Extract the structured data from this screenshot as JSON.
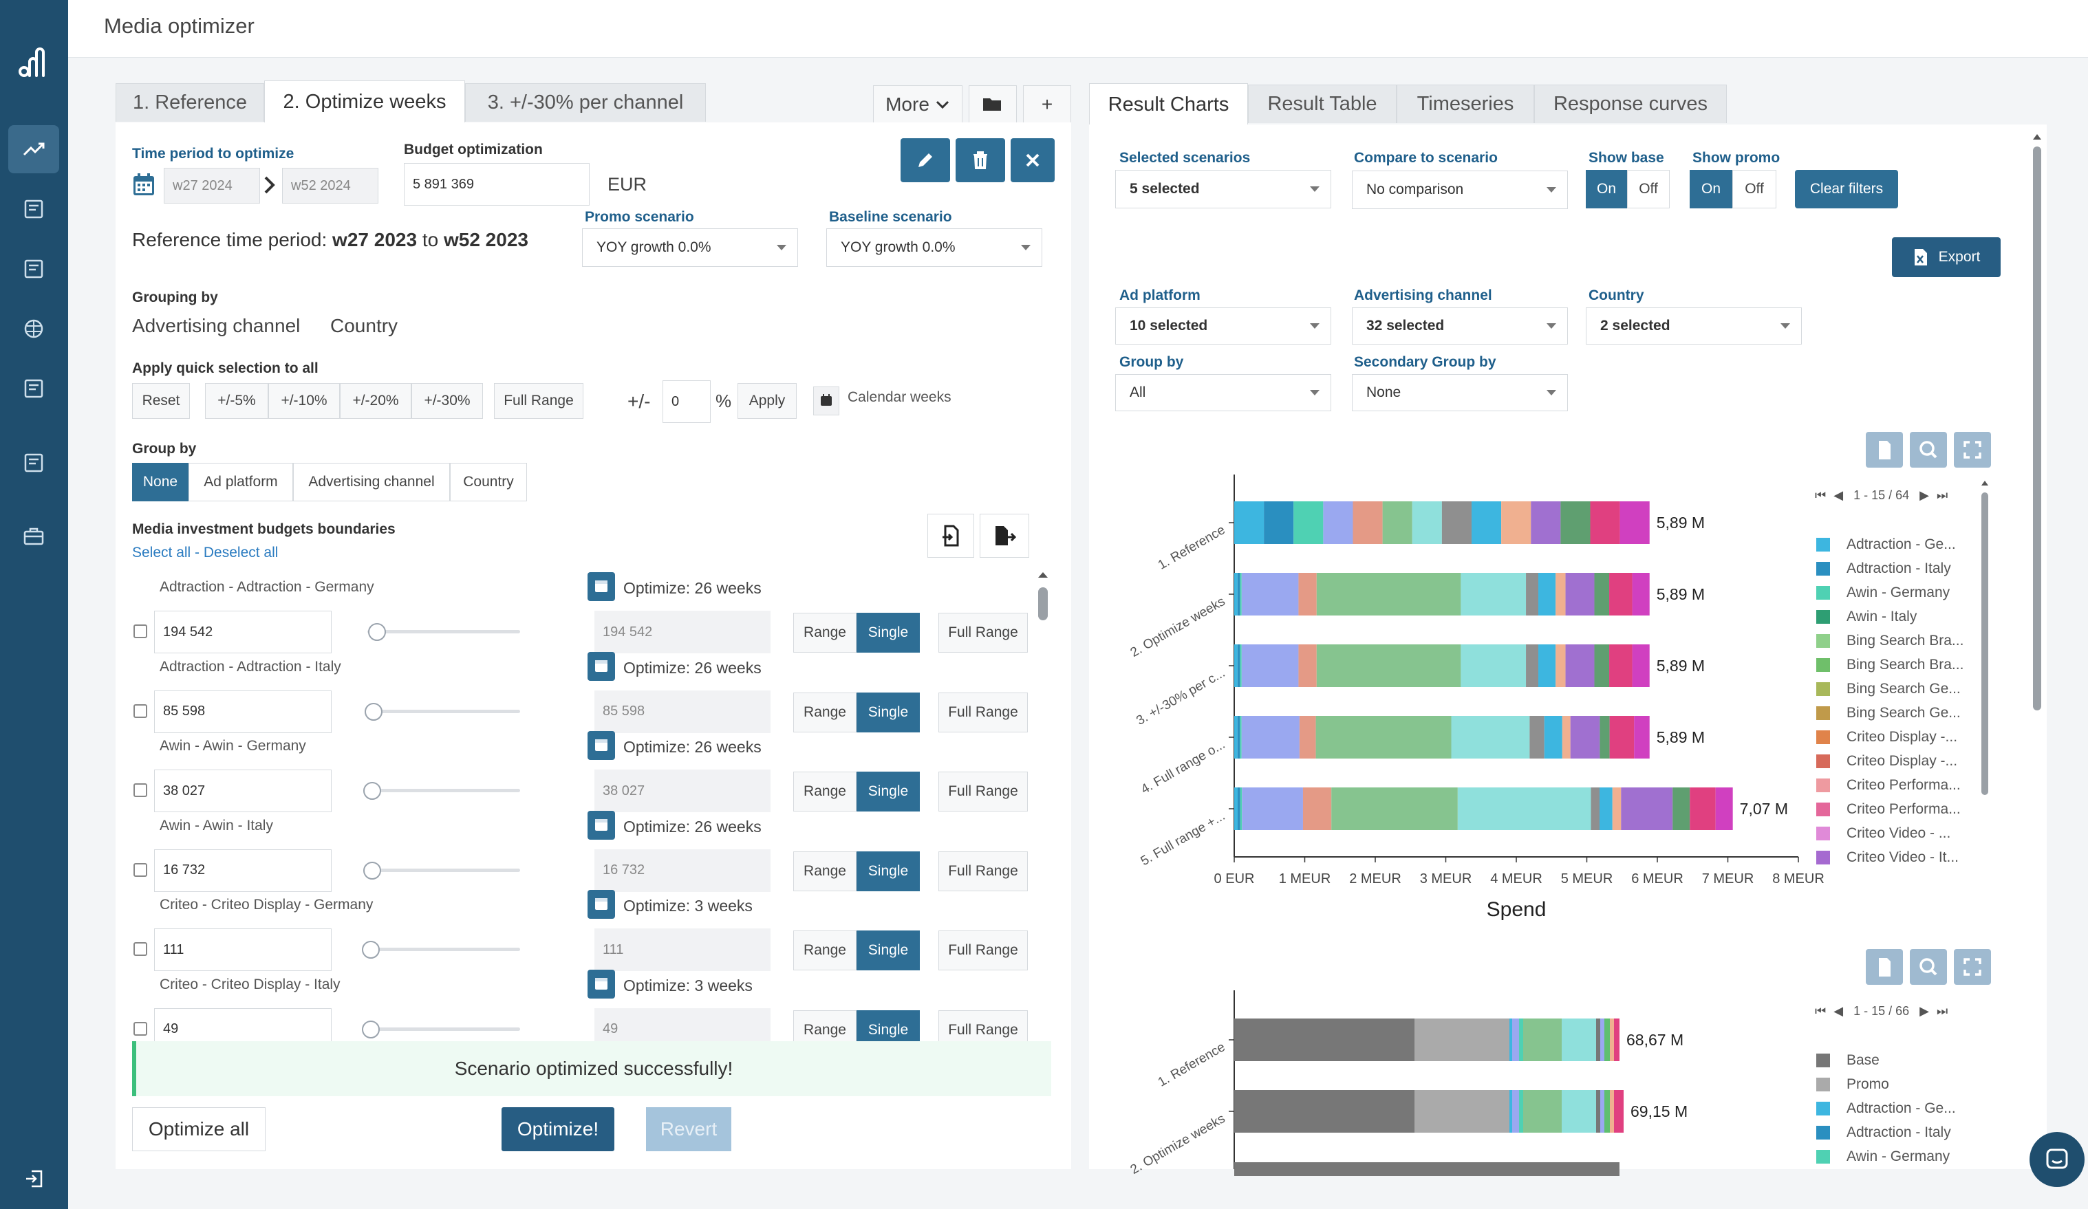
{
  "app": {
    "title": "Media optimizer"
  },
  "left_tabs": [
    {
      "label": "1. Reference"
    },
    {
      "label": "2. Optimize weeks"
    },
    {
      "label": "3. +/-30% per channel"
    }
  ],
  "left_toolbar": {
    "more_label": "More",
    "plus_label": "+"
  },
  "right_tabs": [
    {
      "label": "Result Charts"
    },
    {
      "label": "Result Table"
    },
    {
      "label": "Timeseries"
    },
    {
      "label": "Response curves"
    }
  ],
  "time_period": {
    "label": "Time period to optimize",
    "from": "w27 2024",
    "to": "w52 2024"
  },
  "budget": {
    "label": "Budget optimization",
    "value": "5 891 369",
    "currency": "EUR"
  },
  "promo": {
    "label": "Promo scenario",
    "value": "YOY growth 0.0%"
  },
  "baseline": {
    "label": "Baseline scenario",
    "value": "YOY growth 0.0%"
  },
  "reference": {
    "prefix": "Reference time period: ",
    "from": "w27 2023",
    "mid": " to ",
    "to": "w52 2023"
  },
  "grouping": {
    "label": "Grouping by",
    "items": [
      "Advertising channel",
      "Country"
    ]
  },
  "quick": {
    "label": "Apply quick selection to all",
    "buttons": [
      "Reset",
      "+/-5%",
      "+/-10%",
      "+/-20%",
      "+/-30%",
      "Full Range"
    ],
    "pm_label": "+/-",
    "pm_value": "0",
    "pct": "%",
    "apply": "Apply",
    "calendar_label": "Calendar weeks"
  },
  "groupby": {
    "label": "Group by",
    "buttons": [
      "None",
      "Ad platform",
      "Advertising channel",
      "Country"
    ],
    "active": "None"
  },
  "boundaries": {
    "title": "Media investment budgets boundaries",
    "select_all": "Select all",
    "sep": " - ",
    "deselect_all": "Deselect all"
  },
  "rows": [
    {
      "name": "Adtraction - Adtraction - Germany",
      "value": "194 542",
      "disabled": "194 542",
      "optimize": "Optimize: 26 weeks",
      "slider": 0.04
    },
    {
      "name": "Adtraction - Adtraction - Italy",
      "value": "85 598",
      "disabled": "85 598",
      "optimize": "Optimize: 26 weeks",
      "slider": 0.02
    },
    {
      "name": "Awin - Awin - Germany",
      "value": "38 027",
      "disabled": "38 027",
      "optimize": "Optimize: 26 weeks",
      "slider": 0.01
    },
    {
      "name": "Awin - Awin - Italy",
      "value": "16 732",
      "disabled": "16 732",
      "optimize": "Optimize: 26 weeks",
      "slider": 0.01
    },
    {
      "name": "Criteo - Criteo Display - Germany",
      "value": "111",
      "disabled": "111",
      "optimize": "Optimize: 3 weeks",
      "slider": 0.0
    },
    {
      "name": "Criteo - Criteo Display - Italy",
      "value": "49",
      "disabled": "49",
      "optimize": "Optimize: 3 weeks",
      "slider": 0.0
    }
  ],
  "row_buttons": {
    "range": "Range",
    "single": "Single",
    "full_range": "Full Range"
  },
  "status": {
    "message": "Scenario optimized successfully!"
  },
  "bottom": {
    "optimize_all": "Optimize all",
    "optimize": "Optimize!",
    "revert": "Revert"
  },
  "filters": {
    "selected_scenarios": {
      "label": "Selected scenarios",
      "value": "5 selected"
    },
    "compare": {
      "label": "Compare to scenario",
      "value": "No comparison"
    },
    "show_base": {
      "label": "Show base",
      "on": "On",
      "off": "Off"
    },
    "show_promo": {
      "label": "Show promo",
      "on": "On",
      "off": "Off"
    },
    "clear": "Clear filters",
    "export": "Export",
    "ad_platform": {
      "label": "Ad platform",
      "value": "10 selected"
    },
    "channel": {
      "label": "Advertising channel",
      "value": "32 selected"
    },
    "country": {
      "label": "Country",
      "value": "2 selected"
    },
    "group_by": {
      "label": "Group by",
      "value": "All"
    },
    "secondary": {
      "label": "Secondary Group by",
      "value": "None"
    }
  },
  "chart1_pager": "1 - 15 / 64",
  "chart2_pager": "1 - 15 / 66",
  "chart_data": [
    {
      "type": "bar",
      "orientation": "horizontal",
      "stacked": true,
      "categories": [
        "1. Reference",
        "2. Optimize weeks",
        "3. +/-30% per c...",
        "4. Full range o...",
        "5. Full range +..."
      ],
      "totals_labels": [
        "5,89 M",
        "5,89 M",
        "5,89 M",
        "5,89 M",
        "7,07 M"
      ],
      "totals": [
        5.89,
        5.89,
        5.89,
        5.89,
        7.07
      ],
      "xlabel": "Spend",
      "xlim": [
        0,
        8
      ],
      "x_ticks": [
        "0 EUR",
        "1 MEUR",
        "2 MEUR",
        "3 MEUR",
        "4 MEUR",
        "5 MEUR",
        "6 MEUR",
        "7 MEUR",
        "8 MEUR"
      ],
      "legend_position": "right",
      "legend": [
        {
          "name": "Adtraction - Ge...",
          "color": "#3db6e0"
        },
        {
          "name": "Adtraction - Italy",
          "color": "#2a8fc0"
        },
        {
          "name": "Awin - Germany",
          "color": "#4fd1b3"
        },
        {
          "name": "Awin - Italy",
          "color": "#2e9e73"
        },
        {
          "name": "Bing Search Bra...",
          "color": "#8fd08a"
        },
        {
          "name": "Bing Search Bra...",
          "color": "#6fbf6a"
        },
        {
          "name": "Bing Search Ge...",
          "color": "#a8b85a"
        },
        {
          "name": "Bing Search Ge...",
          "color": "#c09a4a"
        },
        {
          "name": "Criteo Display -...",
          "color": "#e0834a"
        },
        {
          "name": "Criteo Display -...",
          "color": "#d76a5a"
        },
        {
          "name": "Criteo Performa...",
          "color": "#ee9aa0"
        },
        {
          "name": "Criteo Performa...",
          "color": "#e4679a"
        },
        {
          "name": "Criteo Video - ...",
          "color": "#e08ad8"
        },
        {
          "name": "Criteo Video - It...",
          "color": "#a56ad0"
        }
      ],
      "segment_colors": [
        "#3db6e0",
        "#2a8fc0",
        "#4fd1b3",
        "#9aa8f0",
        "#e49a86",
        "#86c48f",
        "#8fe0dc",
        "#8f8f8f",
        "#3db6e0",
        "#f0b090",
        "#a070d0",
        "#5f9f70",
        "#e04080",
        "#d040c0"
      ],
      "series_values": [
        [
          0.05,
          0.05,
          0.05,
          0.05,
          0.05,
          0.05,
          0.05,
          0.05,
          0.05,
          0.05,
          0.05,
          0.05,
          0.05,
          0.05
        ],
        [
          0.04,
          0.03,
          0.02,
          0.69,
          0.22,
          1.75,
          0.79,
          0.15,
          0.21,
          0.12,
          0.35,
          0.18,
          0.28,
          0.21
        ],
        [
          0.04,
          0.03,
          0.02,
          0.69,
          0.22,
          1.75,
          0.79,
          0.15,
          0.21,
          0.12,
          0.35,
          0.18,
          0.28,
          0.21
        ],
        [
          0.04,
          0.03,
          0.02,
          0.71,
          0.2,
          1.66,
          0.96,
          0.18,
          0.22,
          0.1,
          0.36,
          0.12,
          0.3,
          0.19
        ],
        [
          0.04,
          0.03,
          0.02,
          0.71,
          0.33,
          1.47,
          1.55,
          0.1,
          0.15,
          0.1,
          0.6,
          0.2,
          0.3,
          0.2
        ]
      ]
    },
    {
      "type": "bar",
      "orientation": "horizontal",
      "stacked": true,
      "categories": [
        "1. Reference",
        "2. Optimize weeks"
      ],
      "totals_labels": [
        "68,67 M",
        "69,15 M"
      ],
      "legend_position": "right",
      "legend": [
        {
          "name": "Base",
          "color": "#777777"
        },
        {
          "name": "Promo",
          "color": "#aaaaaa"
        },
        {
          "name": "Adtraction - Ge...",
          "color": "#3db6e0"
        },
        {
          "name": "Adtraction - Italy",
          "color": "#2a8fc0"
        },
        {
          "name": "Awin - Germany",
          "color": "#4fd1b3"
        }
      ]
    }
  ],
  "icons": {
    "sidebar": [
      "logo-icon",
      "trend-icon",
      "doc-icon",
      "doc-icon",
      "brain-icon",
      "doc-icon",
      "doc-icon",
      "briefcase-icon",
      "logout-icon"
    ]
  },
  "colors": {
    "sidebar": "#1f4e6e",
    "primary": "#2e6e95",
    "success_bg": "#eefaf3",
    "success_border": "#3cbf7c"
  }
}
